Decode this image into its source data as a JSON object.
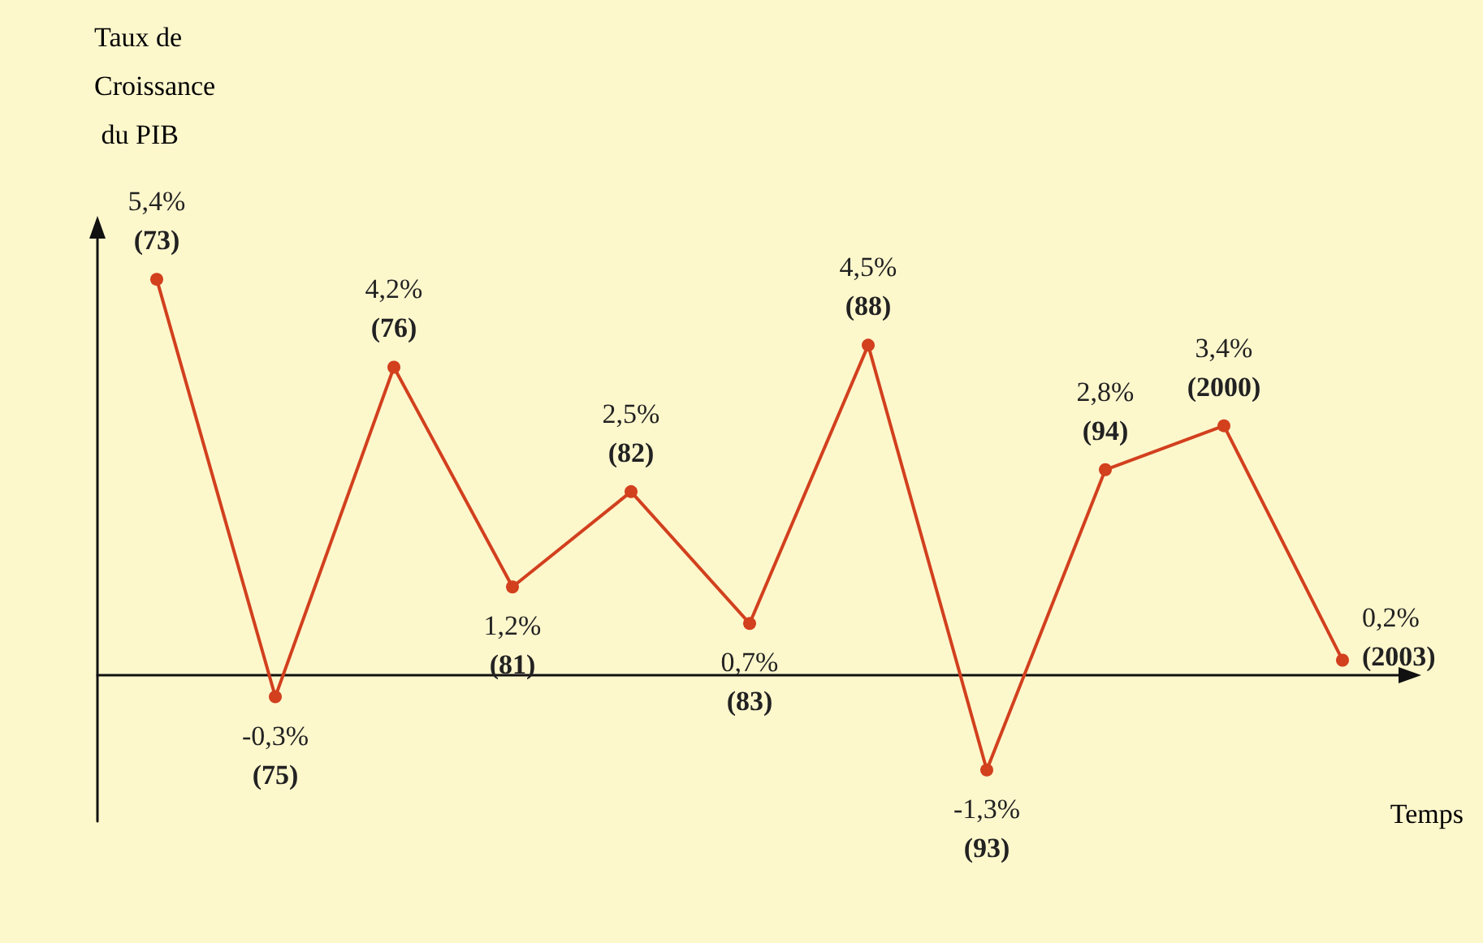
{
  "chart_data": {
    "type": "line",
    "ylabel": "Taux de\nCroissance\n du PIB",
    "xlabel": "Temps",
    "categories": [
      null,
      null,
      null,
      null,
      null,
      null,
      null,
      null,
      null,
      null,
      null
    ],
    "series": [
      {
        "color": "#d2401e",
        "values": [
          5.4,
          -0.3,
          4.2,
          1.2,
          2.5,
          0.7,
          4.5,
          -1.3,
          2.8,
          3.4,
          0.2
        ],
        "value_labels": [
          "5,4%\n(73)",
          "-0,3%\n(75)",
          "4,2%\n(76)",
          "1,2%\n(81)",
          "2,5%\n(82)",
          "0,7%\n(83)",
          "4,5%\n(88)",
          "-1,3%\n(93)",
          "2,8%\n(94)",
          "3,4%\n(2000)",
          "0,2%\n(2003)"
        ]
      }
    ],
    "marker": "circle",
    "line_style": "solid",
    "grid": false
  }
}
